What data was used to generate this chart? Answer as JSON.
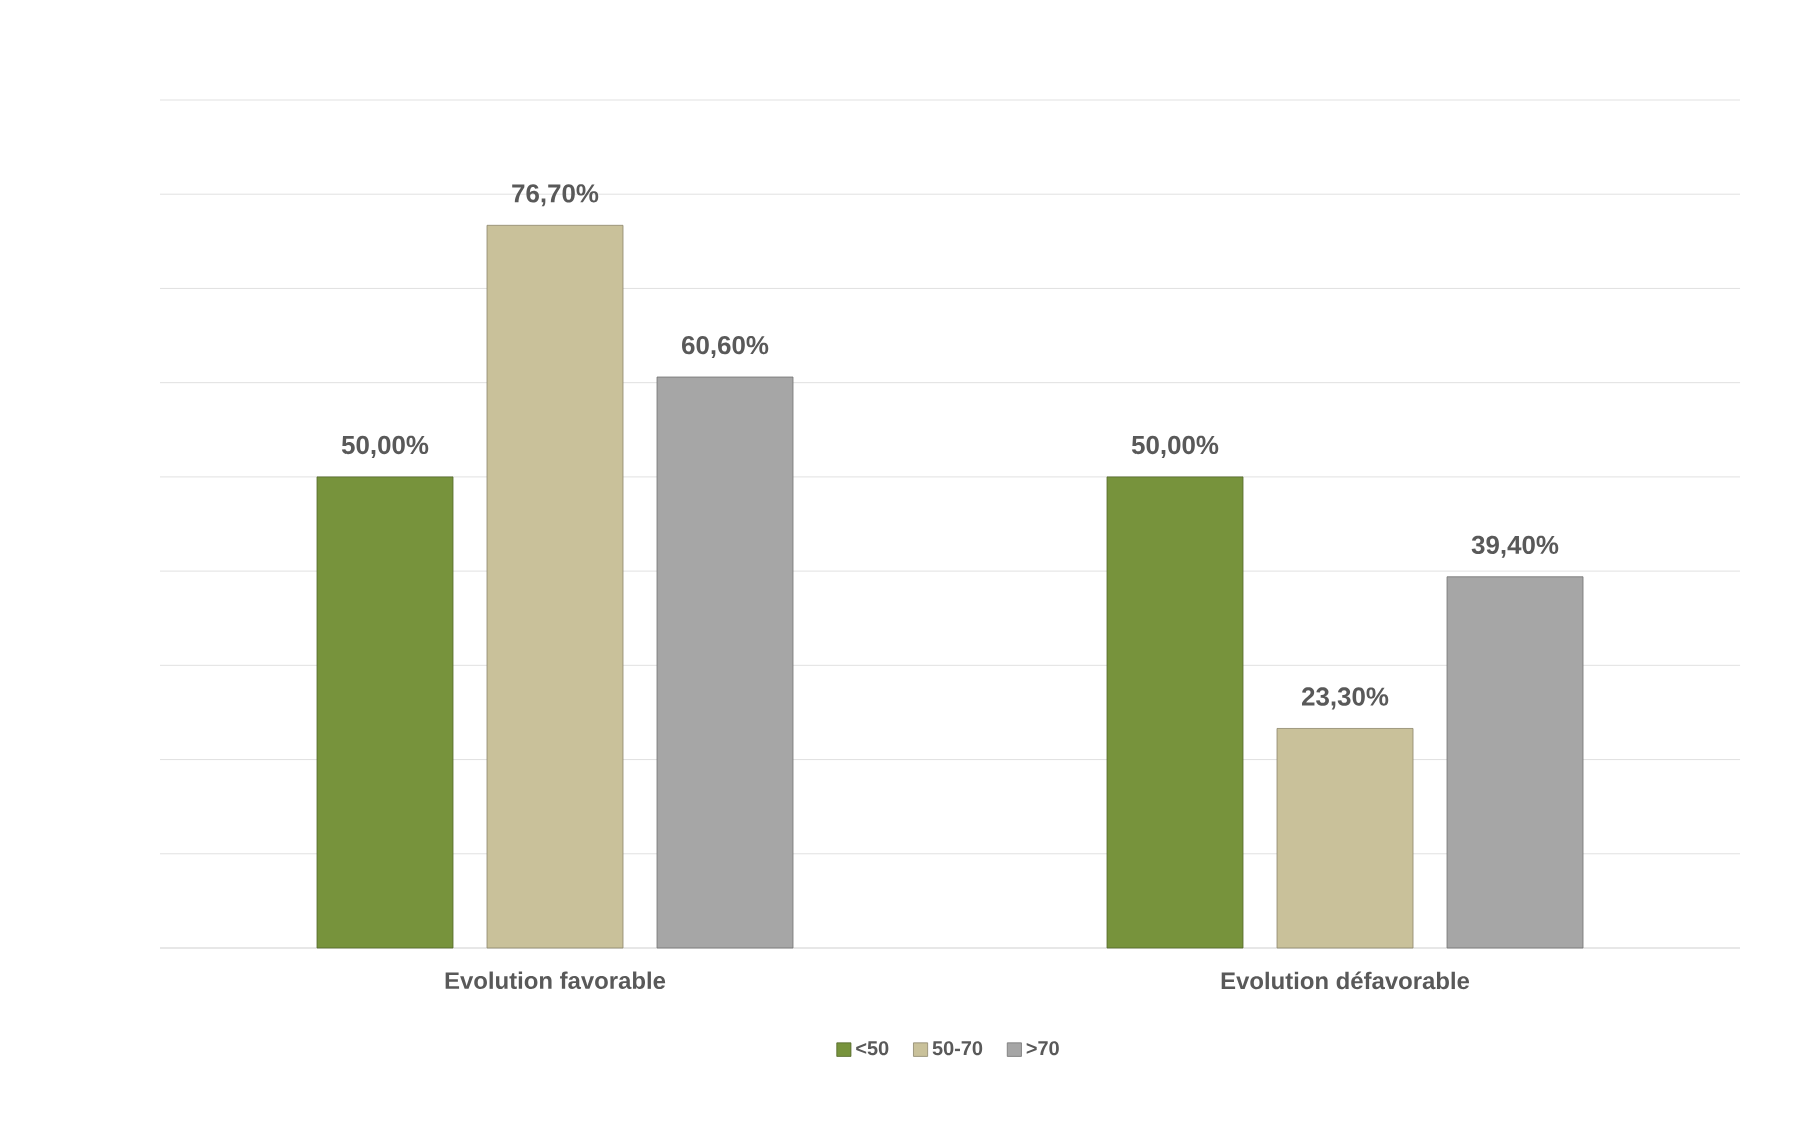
{
  "chart_data": {
    "type": "bar",
    "categories": [
      "Evolution favorable",
      "Evolution défavorable"
    ],
    "series": [
      {
        "name": "<50",
        "color": "#77933c",
        "values": [
          50,
          50
        ],
        "value_labels": [
          "50,00%",
          "50,00%"
        ]
      },
      {
        "name": "50-70",
        "color": "#c9c19a",
        "values": [
          76.7,
          23.3
        ],
        "value_labels": [
          "76,70%",
          "23,30%"
        ]
      },
      {
        "name": ">70",
        "color": "#a6a6a6",
        "values": [
          60.6,
          39.4
        ],
        "value_labels": [
          "60,60%",
          "39,40%"
        ]
      }
    ],
    "ylim": [
      0,
      90
    ],
    "yticks": [
      {
        "value": 0,
        "label": null
      },
      {
        "value": 10,
        "label": null
      },
      {
        "value": 20,
        "label": null
      },
      {
        "value": 30,
        "label": null
      },
      {
        "value": 40,
        "label": null
      },
      {
        "value": 50,
        "label": null
      },
      {
        "value": 60,
        "label": null
      },
      {
        "value": 70,
        "label": null
      },
      {
        "value": 80,
        "label": null
      },
      {
        "value": 90,
        "label": null
      }
    ],
    "tick_labels": "x",
    "grid": "y",
    "legend": "bottom"
  }
}
